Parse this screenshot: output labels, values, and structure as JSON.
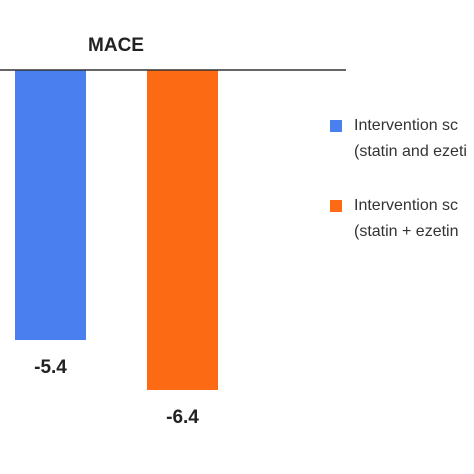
{
  "chart_data": {
    "type": "bar",
    "title": "MACE",
    "categories": [
      "Intervention sc",
      "Intervention sc"
    ],
    "values": [
      -5.4,
      -6.4
    ],
    "value_labels": [
      "-5.4",
      "-6.4"
    ],
    "colors": [
      "#4a7fef",
      "#fc6a14"
    ],
    "axis_color": "#333333",
    "grid": false,
    "legend_position": "right",
    "legend": [
      {
        "line1": "Intervention sc",
        "line2": "(statin and ezeti"
      },
      {
        "line1": "Intervention sc",
        "line2": "(statin + ezetin"
      }
    ]
  }
}
